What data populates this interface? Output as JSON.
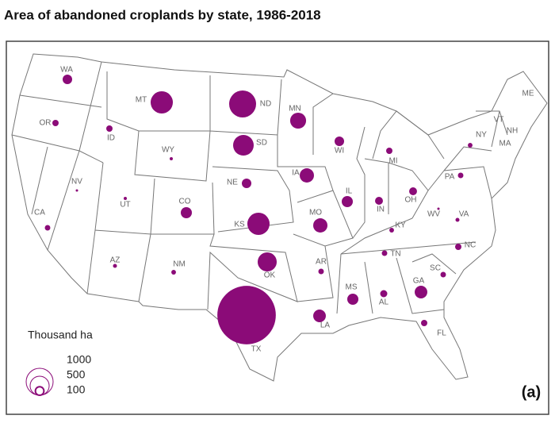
{
  "chart_data": {
    "type": "proportional-map",
    "title": "Area of abandoned croplands by state, 1986-2018",
    "panel_label": "(a)",
    "color": "#8b0b78",
    "legend": {
      "title": "Thousand ha",
      "values": [
        1000,
        500,
        100
      ]
    },
    "states": [
      {
        "label": "WA",
        "value": 125
      },
      {
        "label": "OR",
        "value": 55
      },
      {
        "label": "CA",
        "value": 42
      },
      {
        "label": "NV",
        "value": 8
      },
      {
        "label": "ID",
        "value": 55
      },
      {
        "label": "MT",
        "value": 680
      },
      {
        "label": "WY",
        "value": 14
      },
      {
        "label": "UT",
        "value": 14
      },
      {
        "label": "AZ",
        "value": 22
      },
      {
        "label": "CO",
        "value": 170
      },
      {
        "label": "NM",
        "value": 30
      },
      {
        "label": "ND",
        "value": 1000
      },
      {
        "label": "SD",
        "value": 585
      },
      {
        "label": "NE",
        "value": 125
      },
      {
        "label": "KS",
        "value": 680
      },
      {
        "label": "OK",
        "value": 500
      },
      {
        "label": "TX",
        "value": 4700
      },
      {
        "label": "MN",
        "value": 350
      },
      {
        "label": "IA",
        "value": 280
      },
      {
        "label": "MO",
        "value": 280
      },
      {
        "label": "AR",
        "value": 42
      },
      {
        "label": "LA",
        "value": 220
      },
      {
        "label": "WI",
        "value": 125
      },
      {
        "label": "IL",
        "value": 170
      },
      {
        "label": "MI",
        "value": 55
      },
      {
        "label": "IN",
        "value": 85
      },
      {
        "label": "OH",
        "value": 85
      },
      {
        "label": "KY",
        "value": 30
      },
      {
        "label": "TN",
        "value": 42
      },
      {
        "label": "MS",
        "value": 170
      },
      {
        "label": "AL",
        "value": 70
      },
      {
        "label": "GA",
        "value": 220
      },
      {
        "label": "FL",
        "value": 55
      },
      {
        "label": "SC",
        "value": 42
      },
      {
        "label": "NC",
        "value": 55
      },
      {
        "label": "VA",
        "value": 22
      },
      {
        "label": "WV",
        "value": 8
      },
      {
        "label": "PA",
        "value": 42
      },
      {
        "label": "NY",
        "value": 30
      },
      {
        "label": "ME",
        "value": null
      },
      {
        "label": "VT",
        "value": null
      },
      {
        "label": "NH",
        "value": null
      },
      {
        "label": "MA",
        "value": null
      }
    ]
  }
}
